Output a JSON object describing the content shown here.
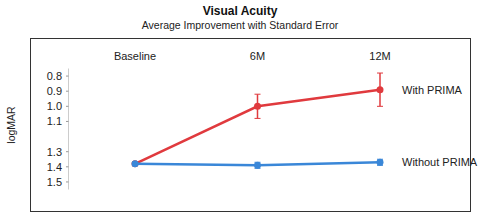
{
  "chart_data": {
    "type": "line",
    "title": "Visual Acuity",
    "subtitle": "Average Improvement with Standard Error",
    "y_label": "logMAR",
    "categories": [
      "Baseline",
      "6M",
      "12M"
    ],
    "series": [
      {
        "name": "With PRIMA",
        "color": "#e03a3e",
        "marker": "circle",
        "values": [
          1.38,
          1.0,
          0.89
        ],
        "errors": [
          0.01,
          0.08,
          0.11
        ]
      },
      {
        "name": "Without PRIMA",
        "color": "#3a87d8",
        "marker": "circle",
        "values": [
          1.38,
          1.39,
          1.37
        ],
        "errors": [
          0.01,
          0.02,
          0.02
        ]
      }
    ],
    "ylim": [
      1.55,
      0.75
    ],
    "yticks": [
      0.8,
      0.9,
      {
        "value": 1,
        "label": "1.0"
      },
      1.1,
      1.3,
      1.4,
      1.5
    ],
    "grid": false
  }
}
